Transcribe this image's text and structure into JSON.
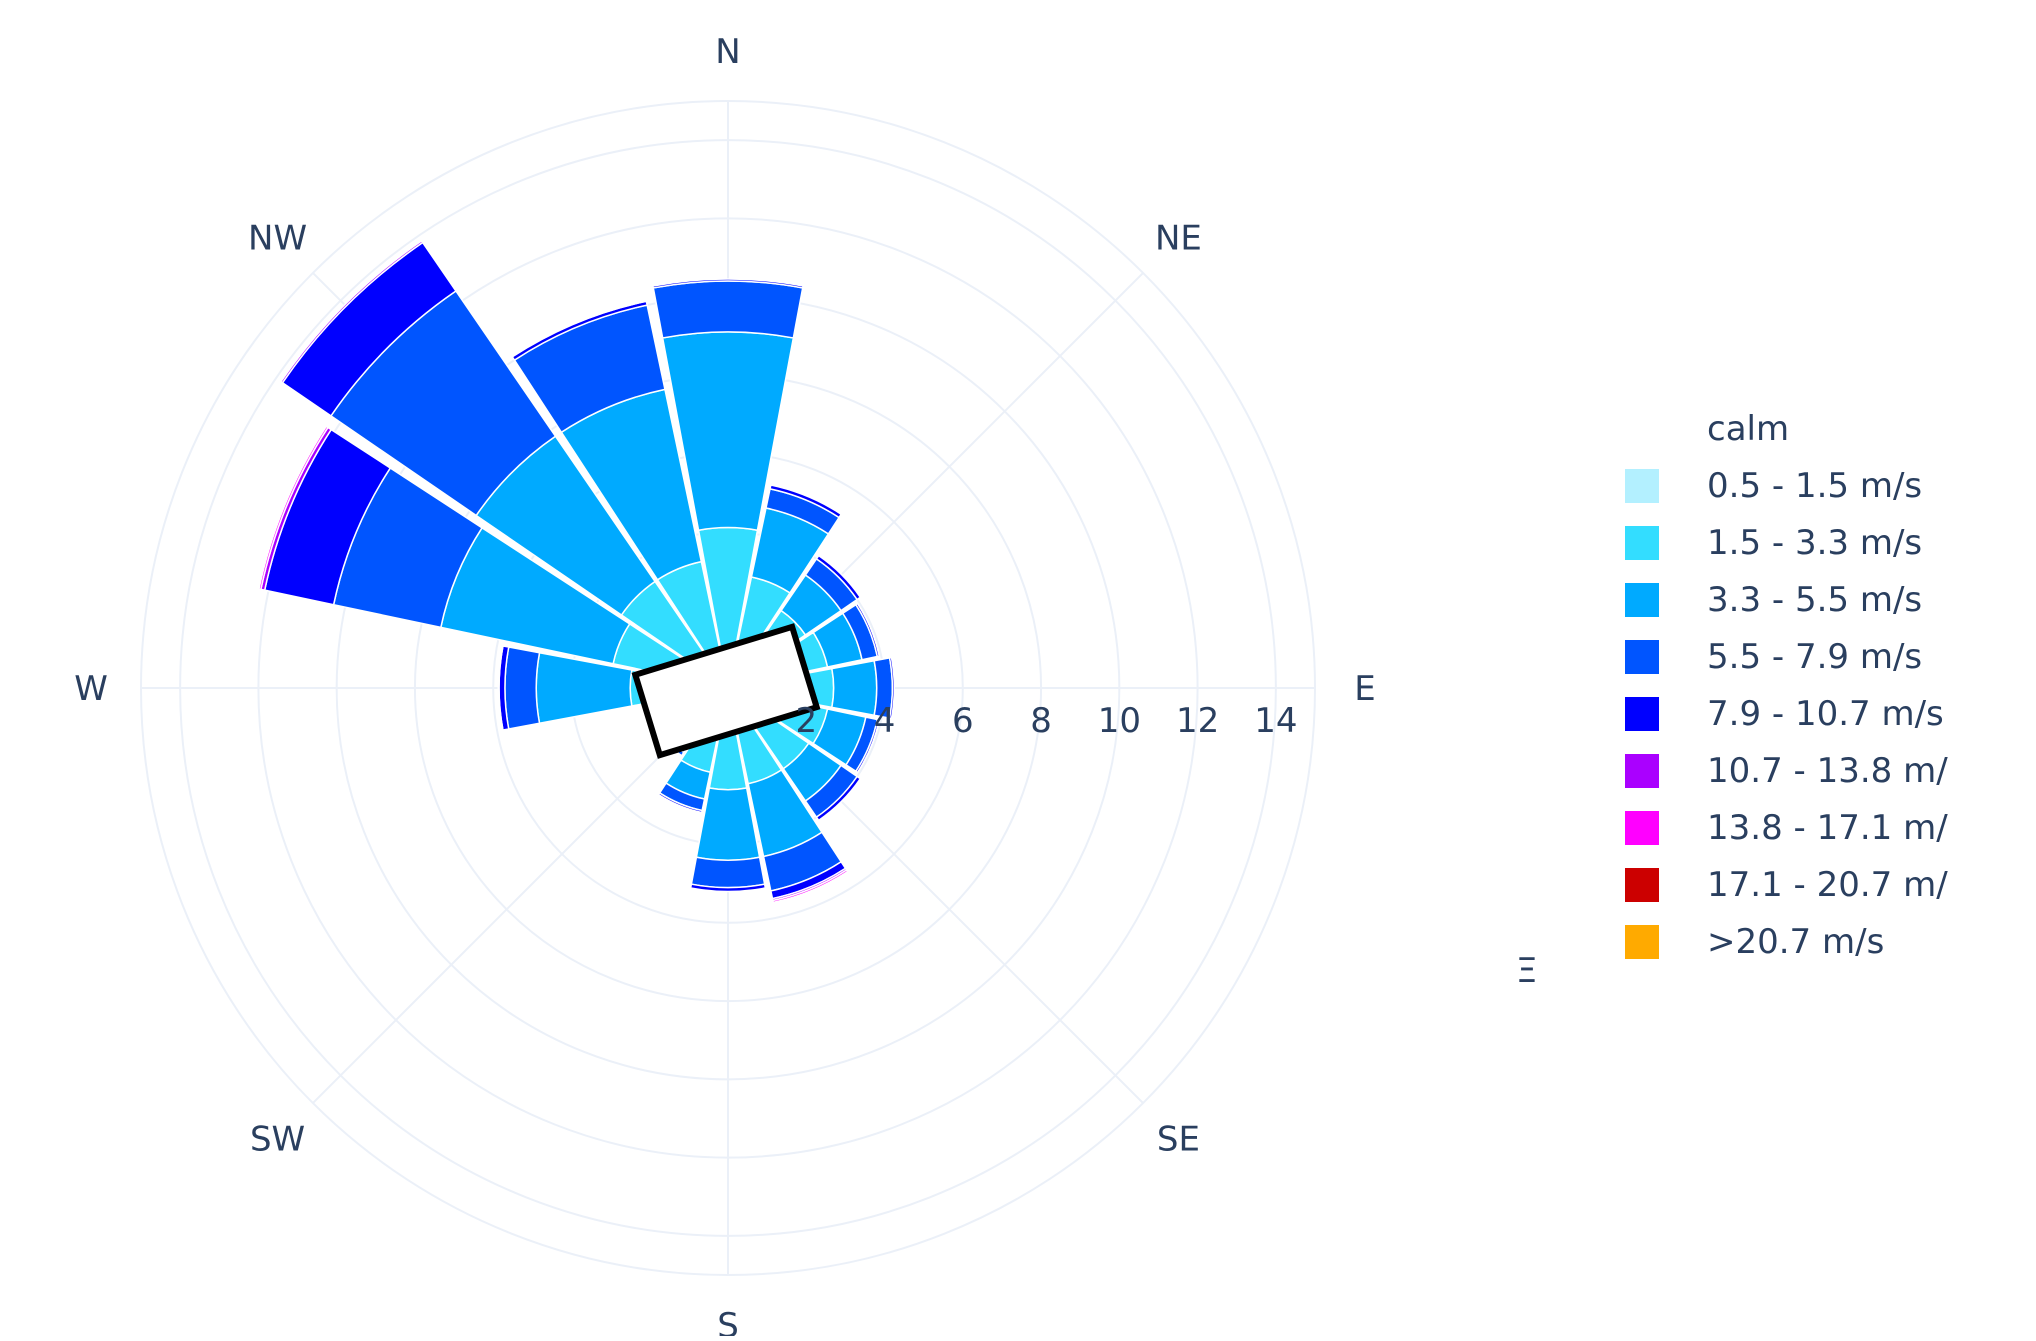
{
  "chart_data": {
    "type": "barpolar",
    "title": "",
    "directions": [
      "N",
      "NNE",
      "NE",
      "ENE",
      "E",
      "ESE",
      "SE",
      "SSE",
      "S",
      "SSW",
      "SW",
      "WSW",
      "W",
      "WNW",
      "NW",
      "NNW"
    ],
    "compass_labels": [
      "N",
      "NE",
      "E",
      "SE",
      "S",
      "SW",
      "W",
      "NW"
    ],
    "radial_ticks": [
      "2",
      "4",
      "6",
      "8",
      "10",
      "12",
      "14"
    ],
    "radial_range": [
      0,
      15
    ],
    "grid": true,
    "legend_position": "right",
    "legend_title": "calm",
    "series": [
      {
        "name": "0.5 - 1.5 m/s",
        "color": "#b3f0ff",
        "values": [
          0.3,
          0.2,
          0.2,
          0.2,
          0.2,
          0.2,
          0.2,
          0.2,
          0.2,
          0.2,
          0.2,
          0.2,
          0.2,
          0.3,
          0.3,
          0.3
        ]
      },
      {
        "name": "1.5 - 3.3 m/s",
        "color": "#33ddff",
        "values": [
          3.8,
          2.7,
          2.2,
          2.4,
          2.5,
          2.4,
          2.3,
          2.3,
          2.4,
          2.0,
          1.5,
          1.4,
          2.3,
          2.7,
          3.0,
          3.0
        ]
      },
      {
        "name": "3.3 - 5.5 m/s",
        "color": "#00aaff",
        "values": [
          5.0,
          1.8,
          1.1,
          0.9,
          1.1,
          1.0,
          1.0,
          1.9,
          1.8,
          0.7,
          0.3,
          0.4,
          2.4,
          4.5,
          4.5,
          4.5
        ]
      },
      {
        "name": "5.5 - 7.9 m/s",
        "color": "#0055ff",
        "values": [
          1.3,
          0.5,
          0.5,
          0.4,
          0.4,
          0.3,
          0.5,
          0.9,
          0.7,
          0.3,
          0.1,
          0.1,
          0.8,
          2.8,
          4.5,
          2.2
        ]
      },
      {
        "name": "7.9 - 10.7 m/s",
        "color": "#0000ff",
        "values": [
          0.05,
          0.1,
          0.1,
          0.05,
          0.05,
          0.05,
          0.1,
          0.2,
          0.1,
          0.05,
          0.02,
          0.02,
          0.15,
          1.8,
          1.5,
          0.1
        ]
      },
      {
        "name": "10.7 - 13.8 m/",
        "color": "#aa00ff",
        "values": [
          0.0,
          0.0,
          0.0,
          0.0,
          0.0,
          0.0,
          0.0,
          0.05,
          0.0,
          0.0,
          0.0,
          0.0,
          0.02,
          0.1,
          0.05,
          0.02
        ]
      },
      {
        "name": "13.8 - 17.1 m/",
        "color": "#ff00ff",
        "values": [
          0.0,
          0.0,
          0.0,
          0.0,
          0.0,
          0.0,
          0.0,
          0.05,
          0.0,
          0.0,
          0.0,
          0.0,
          0.0,
          0.05,
          0.0,
          0.0
        ]
      },
      {
        "name": "17.1 - 20.7 m/",
        "color": "#cc0000",
        "values": [
          0,
          0,
          0,
          0,
          0,
          0,
          0,
          0,
          0,
          0,
          0,
          0,
          0,
          0,
          0,
          0
        ]
      },
      {
        "name": ">20.7 m/s",
        "color": "#ffaa00",
        "values": [
          0,
          0,
          0,
          0,
          0,
          0,
          0,
          0,
          0,
          0,
          0,
          0,
          0,
          0,
          0,
          0
        ]
      }
    ],
    "annotation_text": "",
    "stray_label": "Ξ"
  }
}
